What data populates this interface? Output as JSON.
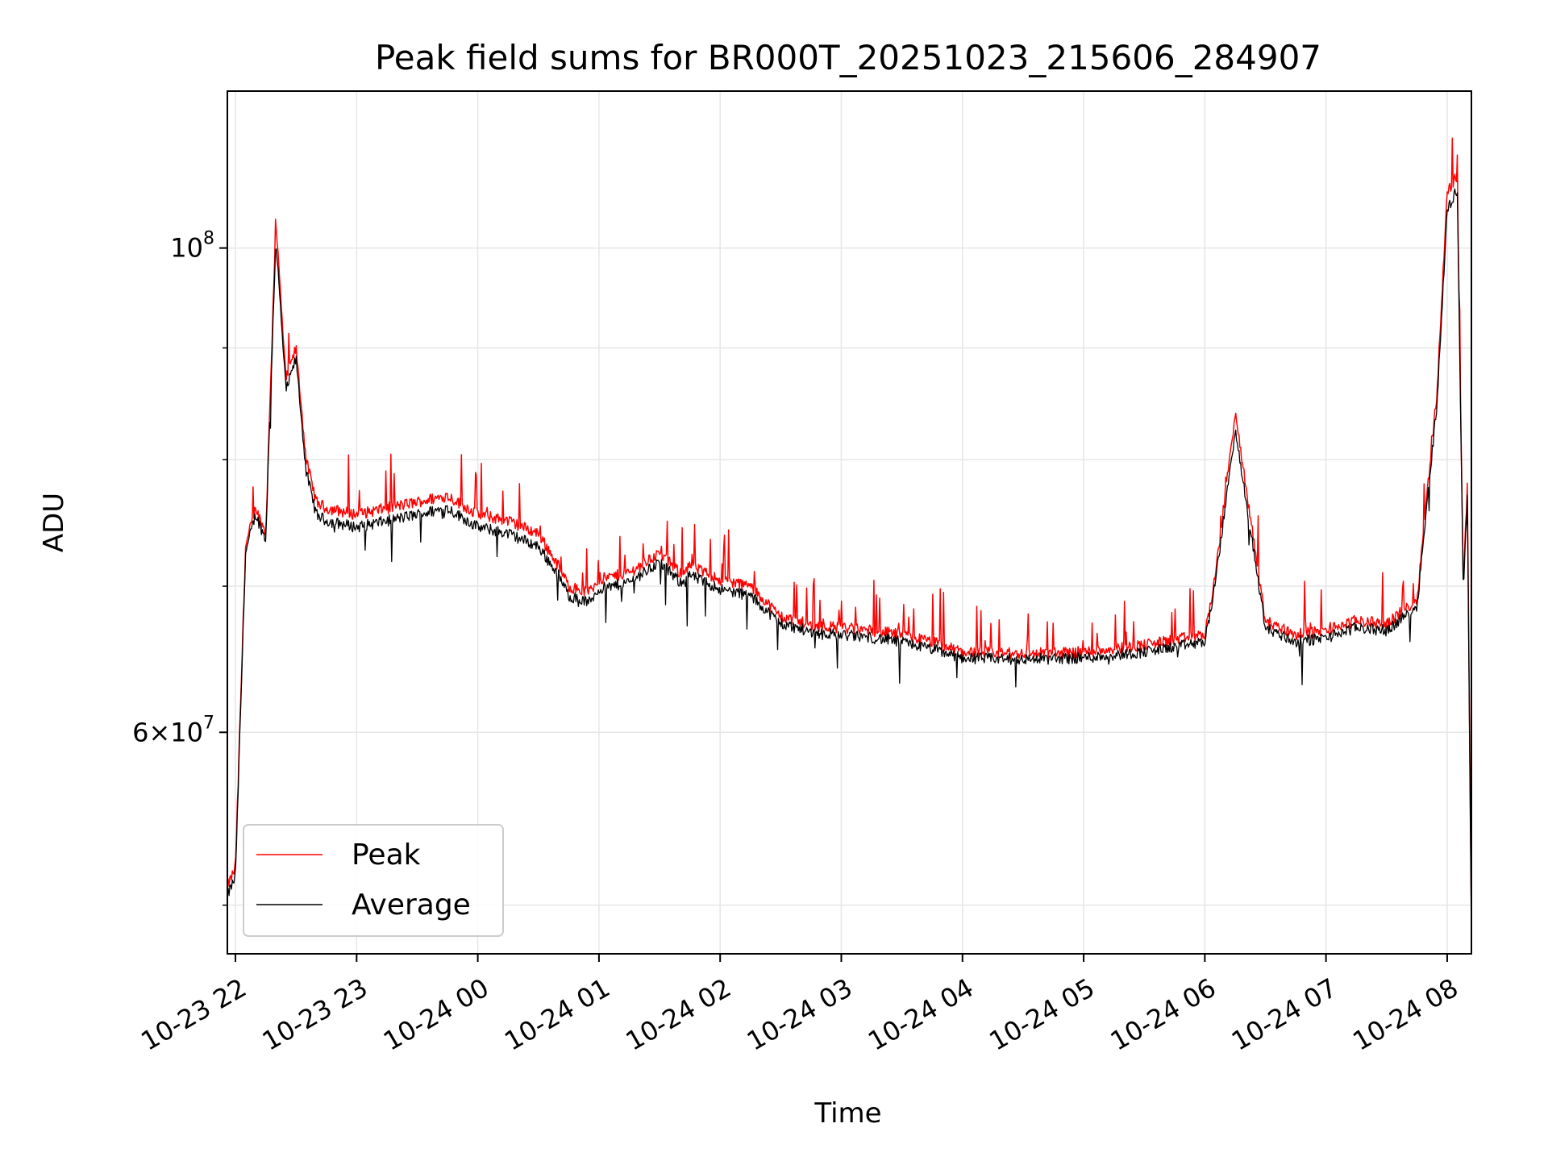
{
  "chart_data": {
    "type": "line",
    "title": "Peak field sums for BR000T_20251023_215606_284907",
    "xlabel": "Time",
    "ylabel": "ADU",
    "yscale": "log",
    "ylim": [
      47500000,
      118000000
    ],
    "xlim": [
      "2025-10-23 21:56",
      "2025-10-24 08:12"
    ],
    "grid": true,
    "legend": "lower-left",
    "x_ticks": [
      "10-23 22",
      "10-23 23",
      "10-24 00",
      "10-24 01",
      "10-24 02",
      "10-24 03",
      "10-24 04",
      "10-24 05",
      "10-24 06",
      "10-24 07",
      "10-24 08"
    ],
    "y_ticks": [
      {
        "base": "10",
        "exp": "8",
        "coef": "",
        "value": 100000000
      },
      {
        "base": "10",
        "exp": "7",
        "coef": "6",
        "value": 60000000
      }
    ],
    "y_minor_ticks": [
      50000000,
      70000000,
      80000000,
      90000000
    ],
    "x": [
      "21:56",
      "22:00",
      "22:05",
      "22:10",
      "22:15",
      "22:20",
      "22:25",
      "22:30",
      "22:35",
      "22:40",
      "22:45",
      "23:00",
      "23:15",
      "23:30",
      "23:45",
      "00:00",
      "00:15",
      "00:30",
      "00:40",
      "00:45",
      "00:55",
      "01:00",
      "01:15",
      "01:30",
      "01:40",
      "01:45",
      "02:00",
      "02:15",
      "02:30",
      "02:45",
      "03:00",
      "03:15",
      "03:30",
      "03:45",
      "04:00",
      "04:30",
      "05:00",
      "05:30",
      "06:00",
      "06:05",
      "06:15",
      "06:30",
      "06:45",
      "07:00",
      "07:15",
      "07:30",
      "07:45",
      "07:55",
      "08:00",
      "08:05",
      "08:08",
      "08:10",
      "08:12"
    ],
    "series": [
      {
        "name": "Peak",
        "color": "#ff0000",
        "values": [
          51000000,
          52000000,
          73000000,
          76000000,
          74000000,
          103000000,
          87000000,
          90000000,
          80000000,
          76500000,
          76000000,
          75500000,
          76000000,
          76500000,
          77000000,
          75500000,
          75000000,
          74000000,
          71500000,
          70000000,
          69500000,
          70500000,
          71000000,
          72500000,
          71000000,
          71500000,
          70500000,
          70000000,
          67800000,
          67200000,
          67000000,
          66800000,
          66500000,
          66000000,
          65300000,
          65200000,
          65300000,
          65800000,
          66500000,
          70500000,
          84000000,
          67500000,
          66500000,
          66800000,
          67500000,
          67300000,
          69000000,
          86000000,
          106000000,
          108000000,
          70000000,
          78000000,
          49000000
        ]
      },
      {
        "name": "Average",
        "color": "#000000",
        "values": [
          50500000,
          51500000,
          72500000,
          75500000,
          73500000,
          101000000,
          86000000,
          89000000,
          79000000,
          75500000,
          75000000,
          74500000,
          75000000,
          75500000,
          76000000,
          74500000,
          74000000,
          73000000,
          70800000,
          69300000,
          68800000,
          69800000,
          70300000,
          71800000,
          70300000,
          70800000,
          69800000,
          69300000,
          67300000,
          66700000,
          66500000,
          66300000,
          66000000,
          65500000,
          64900000,
          64800000,
          64900000,
          65300000,
          66000000,
          70000000,
          82500000,
          67000000,
          66000000,
          66300000,
          67000000,
          66800000,
          68500000,
          85000000,
          104000000,
          106500000,
          69500000,
          77000000,
          48000000
        ]
      }
    ]
  }
}
